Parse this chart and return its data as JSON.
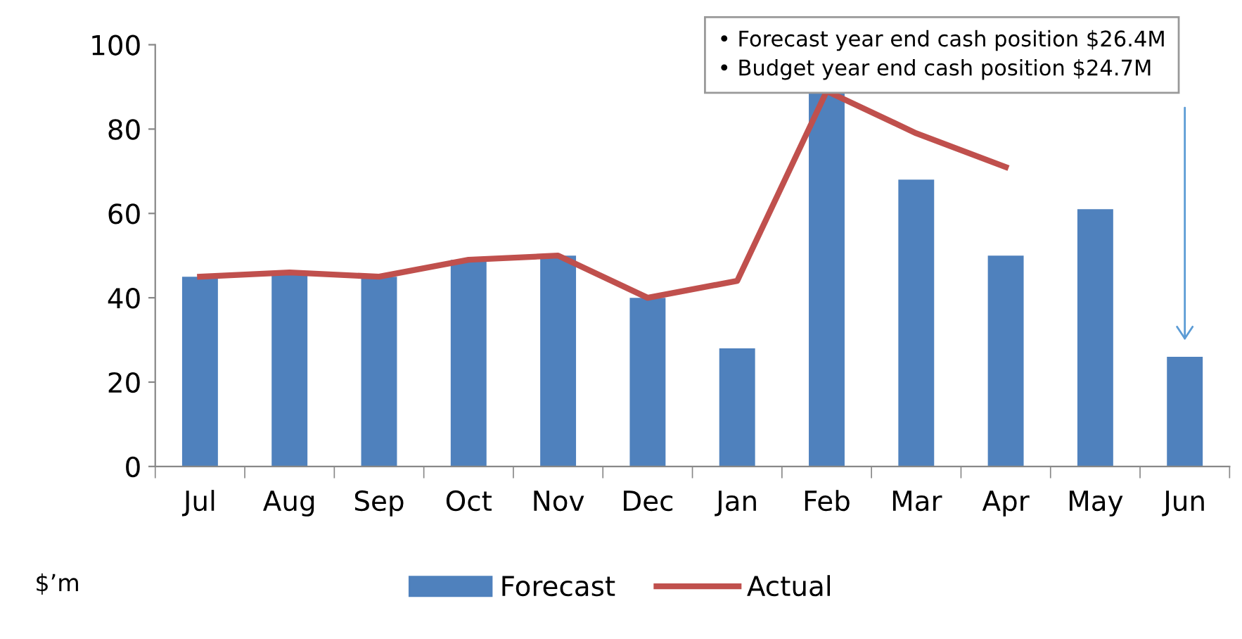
{
  "chart_data": {
    "type": "bar",
    "categories": [
      "Jul",
      "Aug",
      "Sep",
      "Oct",
      "Nov",
      "Dec",
      "Jan",
      "Feb",
      "Mar",
      "Apr",
      "May",
      "Jun"
    ],
    "series": [
      {
        "name": "Forecast",
        "color": "#4f81bd",
        "values": [
          45,
          46,
          45,
          49,
          50,
          40,
          28,
          89,
          68,
          50,
          61,
          26
        ]
      },
      {
        "name": "Actual",
        "type": "line",
        "color": "#c0504d",
        "values": [
          45,
          46,
          45,
          49,
          50,
          40,
          44,
          89,
          79,
          71,
          null,
          null
        ]
      }
    ],
    "ylim": [
      0,
      100
    ],
    "yticks": [
      0,
      20,
      40,
      60,
      80,
      100
    ],
    "grid": false,
    "legend": "bottom",
    "marker": "none",
    "line_style": "solid",
    "annotations": [
      "• Forecast year end cash position $26.4M\n• Budget year end cash position $24.7M",
      "$’m"
    ]
  }
}
